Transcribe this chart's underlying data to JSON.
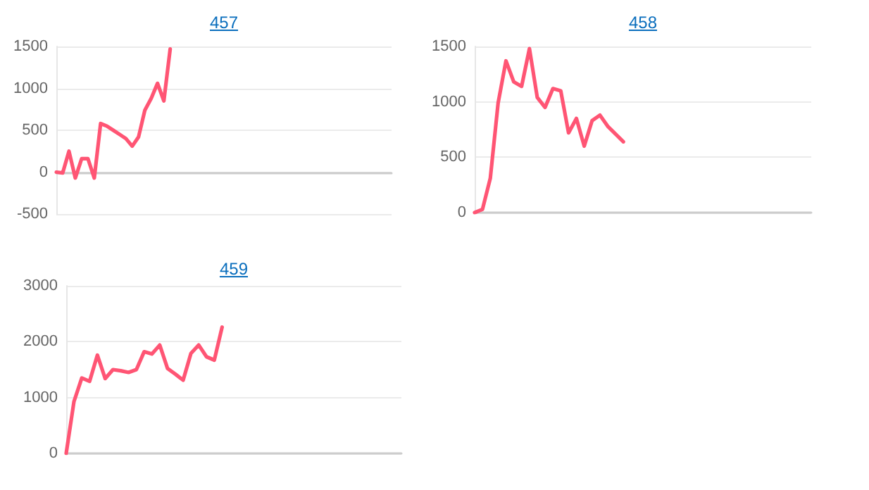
{
  "chart_data": [
    {
      "type": "line",
      "title": "457",
      "categories": [
        null,
        null,
        null,
        null,
        null,
        null,
        null,
        null,
        null,
        null,
        null,
        null,
        null,
        null,
        null,
        null,
        null,
        null,
        null,
        null,
        null,
        null,
        null,
        null,
        null,
        null,
        null,
        null,
        null,
        null,
        null,
        null,
        null,
        null,
        null,
        null,
        null,
        null,
        null,
        null,
        null,
        null,
        null,
        null,
        null,
        null,
        null,
        null,
        null,
        null,
        null,
        null,
        null,
        null
      ],
      "series": [
        {
          "color": "#ff5574",
          "values": [
            0,
            -10,
            250,
            -70,
            160,
            160,
            -70,
            580,
            550,
            500,
            450,
            400,
            310,
            420,
            740,
            880,
            1060,
            850,
            1470,
            null,
            null,
            null,
            null,
            null,
            null,
            null,
            null,
            null,
            null,
            null,
            null,
            null,
            null,
            null,
            null,
            null,
            null,
            null,
            null,
            null,
            null,
            null,
            null,
            null,
            null,
            null,
            null,
            null,
            null,
            null,
            null,
            null,
            null,
            null
          ]
        }
      ],
      "ylim": [
        -500,
        1500
      ],
      "yticks": [
        -500,
        0,
        500,
        1000,
        1500
      ],
      "grid": "y",
      "tick_labels": "y"
    },
    {
      "type": "line",
      "title": "458",
      "categories": [
        null,
        null,
        null,
        null,
        null,
        null,
        null,
        null,
        null,
        null,
        null,
        null,
        null,
        null,
        null,
        null,
        null,
        null,
        null,
        null,
        null,
        null,
        null,
        null,
        null,
        null,
        null,
        null,
        null,
        null,
        null,
        null,
        null,
        null,
        null,
        null,
        null,
        null,
        null,
        null,
        null,
        null,
        null,
        null
      ],
      "series": [
        {
          "color": "#ff5574",
          "values": [
            0,
            30,
            310,
            990,
            1370,
            1180,
            1140,
            1480,
            1040,
            950,
            1120,
            1100,
            720,
            850,
            600,
            830,
            880,
            780,
            710,
            640,
            null,
            null,
            null,
            null,
            null,
            null,
            null,
            null,
            null,
            null,
            null,
            null,
            null,
            null,
            null,
            null,
            null,
            null,
            null,
            null,
            null,
            null,
            null,
            null
          ]
        }
      ],
      "ylim": [
        0,
        1500
      ],
      "yticks": [
        0,
        500,
        1000,
        1500
      ],
      "grid": "y",
      "tick_labels": "y"
    },
    {
      "type": "line",
      "title": "459",
      "categories": [
        null,
        null,
        null,
        null,
        null,
        null,
        null,
        null,
        null,
        null,
        null,
        null,
        null,
        null,
        null,
        null,
        null,
        null,
        null,
        null,
        null,
        null,
        null,
        null,
        null,
        null,
        null,
        null,
        null,
        null,
        null,
        null,
        null,
        null,
        null,
        null,
        null,
        null,
        null,
        null,
        null,
        null,
        null,
        null
      ],
      "series": [
        {
          "color": "#ff5574",
          "values": [
            0,
            930,
            1350,
            1290,
            1760,
            1340,
            1500,
            1480,
            1450,
            1500,
            1820,
            1780,
            1940,
            1520,
            1420,
            1310,
            1790,
            1940,
            1730,
            1670,
            2260,
            null,
            null,
            null,
            null,
            null,
            null,
            null,
            null,
            null,
            null,
            null,
            null,
            null,
            null,
            null,
            null,
            null,
            null,
            null,
            null,
            null,
            null,
            null
          ]
        }
      ],
      "ylim": [
        0,
        3000
      ],
      "yticks": [
        0,
        1000,
        2000,
        3000
      ],
      "grid": "y",
      "tick_labels": "y"
    }
  ]
}
